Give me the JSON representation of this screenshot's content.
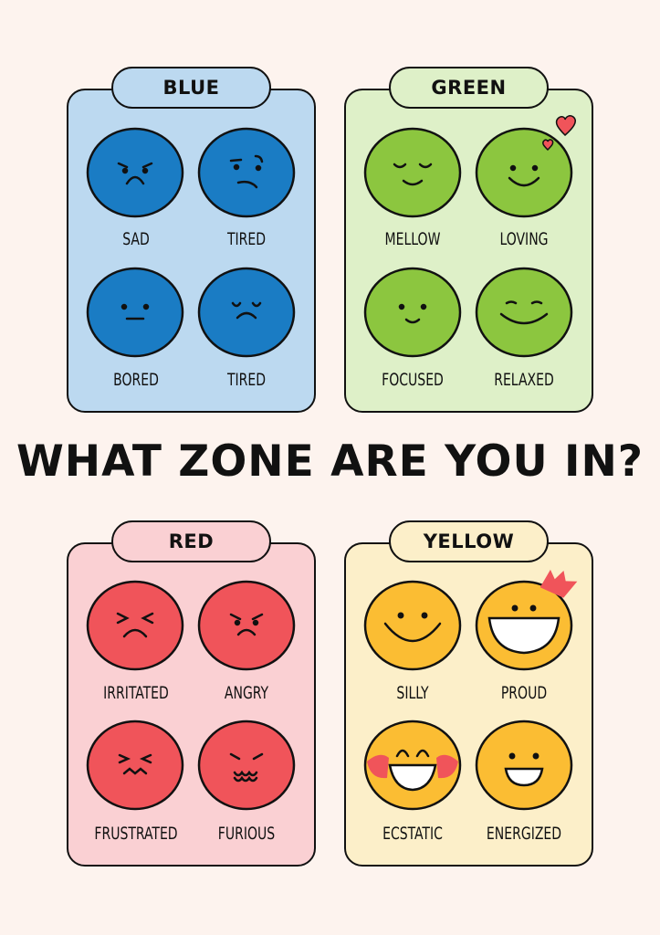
{
  "title": "WHAT ZONE ARE YOU IN?",
  "colors": {
    "background": "#fdf3ee",
    "blue": "#1a7cc4",
    "green": "#8cc63f",
    "red": "#f0545a",
    "yellow": "#fbbd33",
    "accent_pink": "#f0545a"
  },
  "zones": [
    {
      "name": "BLUE",
      "panel_color": "#bcd9f0",
      "emotions": [
        {
          "label": "SAD",
          "icon": "sad-face-icon"
        },
        {
          "label": "TIRED",
          "icon": "tired-face-icon"
        },
        {
          "label": "BORED",
          "icon": "bored-face-icon"
        },
        {
          "label": "TIRED",
          "icon": "sleepy-frown-face-icon"
        }
      ]
    },
    {
      "name": "GREEN",
      "panel_color": "#def0c8",
      "emotions": [
        {
          "label": "MELLOW",
          "icon": "mellow-face-icon"
        },
        {
          "label": "LOVING",
          "icon": "loving-face-icon"
        },
        {
          "label": "FOCUSED",
          "icon": "focused-face-icon"
        },
        {
          "label": "RELAXED",
          "icon": "relaxed-face-icon"
        }
      ]
    },
    {
      "name": "RED",
      "panel_color": "#fad0d3",
      "emotions": [
        {
          "label": "IRRITATED",
          "icon": "irritated-face-icon"
        },
        {
          "label": "ANGRY",
          "icon": "angry-face-icon"
        },
        {
          "label": "FRUSTRATED",
          "icon": "frustrated-face-icon"
        },
        {
          "label": "FURIOUS",
          "icon": "furious-face-icon"
        }
      ]
    },
    {
      "name": "YELLOW",
      "panel_color": "#fcefc9",
      "emotions": [
        {
          "label": "SILLY",
          "icon": "silly-face-icon"
        },
        {
          "label": "PROUD",
          "icon": "proud-face-icon"
        },
        {
          "label": "ECSTATIC",
          "icon": "ecstatic-face-icon"
        },
        {
          "label": "ENERGIZED",
          "icon": "energized-face-icon"
        }
      ]
    }
  ]
}
